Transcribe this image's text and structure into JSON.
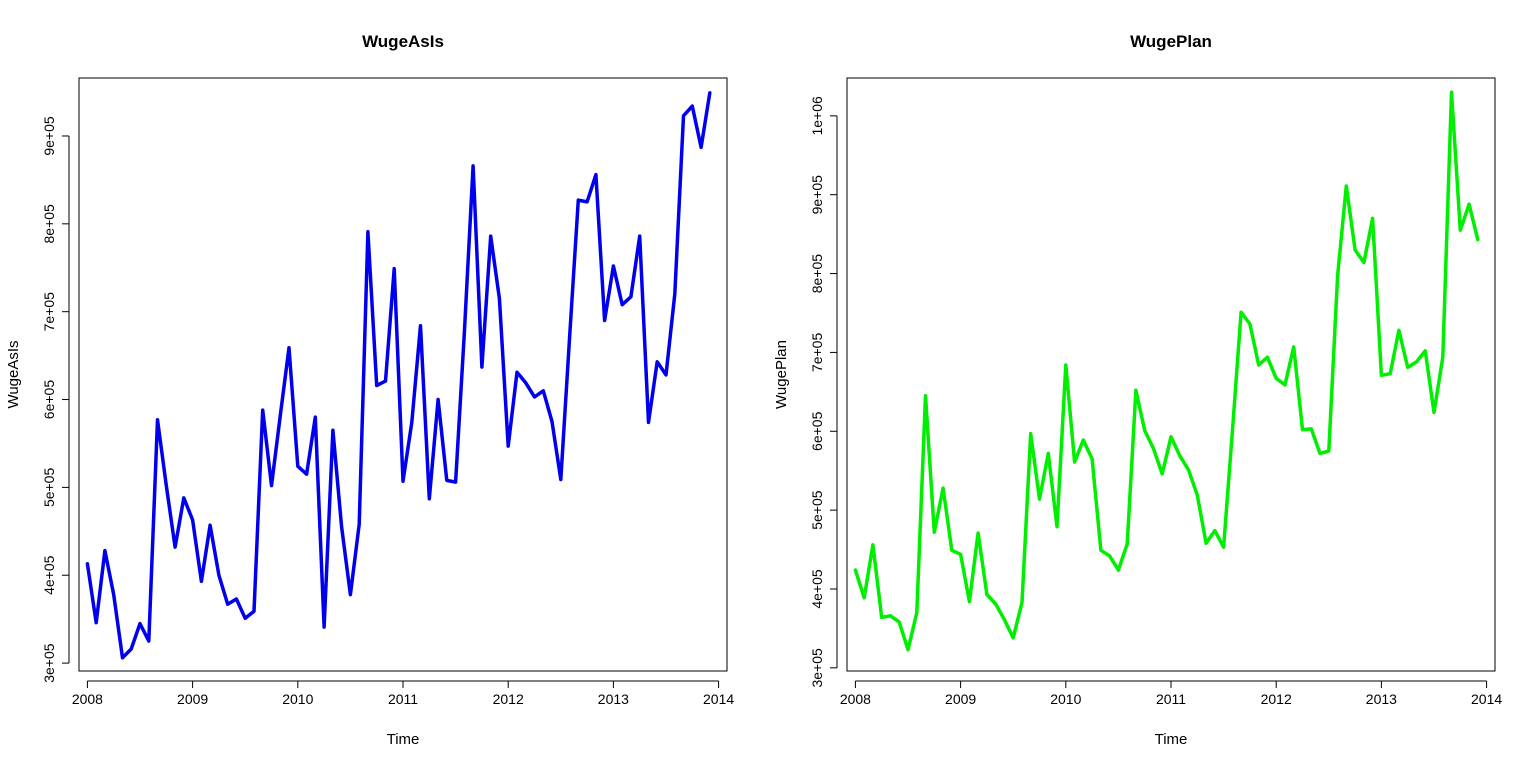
{
  "chart_data": [
    {
      "type": "line",
      "title": "WugeAsIs",
      "xlabel": "Time",
      "ylabel": "WugeAsIs",
      "xlim": [
        2007.92,
        2014.08
      ],
      "ylim": [
        291000,
        966000
      ],
      "x_ticks": [
        2008,
        2009,
        2010,
        2011,
        2012,
        2013,
        2014
      ],
      "x_tick_labels": [
        "2008",
        "2009",
        "2010",
        "2011",
        "2012",
        "2013",
        "2014"
      ],
      "y_ticks": [
        300000,
        400000,
        500000,
        600000,
        700000,
        800000,
        900000
      ],
      "y_tick_labels": [
        "3e+05",
        "4e+05",
        "5e+05",
        "6e+05",
        "7e+05",
        "8e+05",
        "9e+05"
      ],
      "grid": false,
      "color": "#0000ee",
      "series": [
        {
          "x_start": 2008.0,
          "x_step": 0.08333333,
          "values": [
            413000,
            346000,
            428000,
            378000,
            306000,
            316000,
            345000,
            325000,
            577000,
            502000,
            432000,
            488000,
            463000,
            393000,
            457000,
            400000,
            367000,
            373000,
            351000,
            359000,
            588000,
            502000,
            582000,
            659000,
            524000,
            515000,
            580000,
            341000,
            565000,
            455000,
            378000,
            458000,
            791000,
            616000,
            621000,
            749000,
            507000,
            574000,
            684000,
            487000,
            600000,
            508000,
            506000,
            677000,
            866000,
            637000,
            786000,
            715000,
            547000,
            631000,
            619000,
            603000,
            610000,
            575000,
            509000,
            671000,
            827000,
            825000,
            856000,
            690000,
            752000,
            708000,
            717000,
            786000,
            574000,
            643000,
            628000,
            720000,
            923000,
            934000,
            887000,
            949000
          ]
        }
      ]
    },
    {
      "type": "line",
      "title": "WugePlan",
      "xlabel": "Time",
      "ylabel": "WugePlan",
      "xlim": [
        2007.92,
        2014.08
      ],
      "ylim": [
        296000,
        1048000
      ],
      "x_ticks": [
        2008,
        2009,
        2010,
        2011,
        2012,
        2013,
        2014
      ],
      "x_tick_labels": [
        "2008",
        "2009",
        "2010",
        "2011",
        "2012",
        "2013",
        "2014"
      ],
      "y_ticks": [
        300000,
        400000,
        500000,
        600000,
        700000,
        800000,
        900000,
        1000000
      ],
      "y_tick_labels": [
        "3e+05",
        "4e+05",
        "5e+05",
        "6e+05",
        "7e+05",
        "8e+05",
        "9e+05",
        "1e+06"
      ],
      "grid": false,
      "color": "#00ee00",
      "series": [
        {
          "x_start": 2008.0,
          "x_step": 0.08333333,
          "values": [
            424000,
            389000,
            456000,
            364000,
            366000,
            358000,
            323000,
            370000,
            645000,
            472000,
            528000,
            449000,
            444000,
            384000,
            471000,
            393000,
            381000,
            361000,
            338000,
            383000,
            597000,
            514000,
            572000,
            479000,
            684000,
            561000,
            589000,
            565000,
            449000,
            442000,
            424000,
            457000,
            652000,
            601000,
            578000,
            546000,
            593000,
            569000,
            551000,
            519000,
            458000,
            474000,
            453000,
            600000,
            751000,
            736000,
            684000,
            694000,
            667000,
            659000,
            707000,
            602000,
            603000,
            572000,
            575000,
            797000,
            911000,
            830000,
            814000,
            870000,
            671000,
            673000,
            728000,
            681000,
            688000,
            702000,
            624000,
            694000,
            1030000,
            855000,
            888000,
            843000
          ]
        }
      ]
    }
  ]
}
